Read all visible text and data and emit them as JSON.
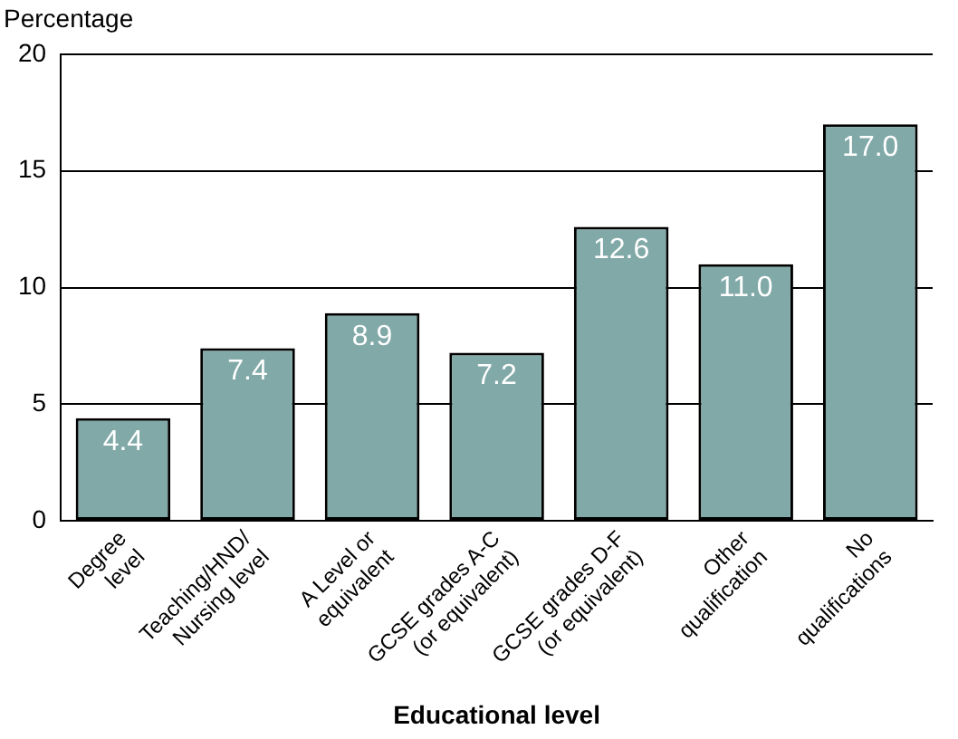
{
  "chart_data": {
    "type": "bar",
    "ylabel": "Percentage",
    "xlabel": "Educational level",
    "categories": [
      "Degree\nlevel",
      "Teaching/HND/\nNursing level",
      "A Level or\nequivalent",
      "GCSE grades A-C\n(or equivalent)",
      "GCSE grades D-F\n(or equivalent)",
      "Other\nqualification",
      "No\nqualifications"
    ],
    "values": [
      4.4,
      7.4,
      8.9,
      7.2,
      12.6,
      11.0,
      17.0
    ],
    "value_labels": [
      "4.4",
      "7.4",
      "8.9",
      "7.2",
      "12.6",
      "11.0",
      "17.0"
    ],
    "color": "#80a9a7",
    "ylim": [
      0,
      20
    ],
    "yticks": [
      0,
      5,
      10,
      15,
      20
    ],
    "grid": "y",
    "legend": false
  }
}
